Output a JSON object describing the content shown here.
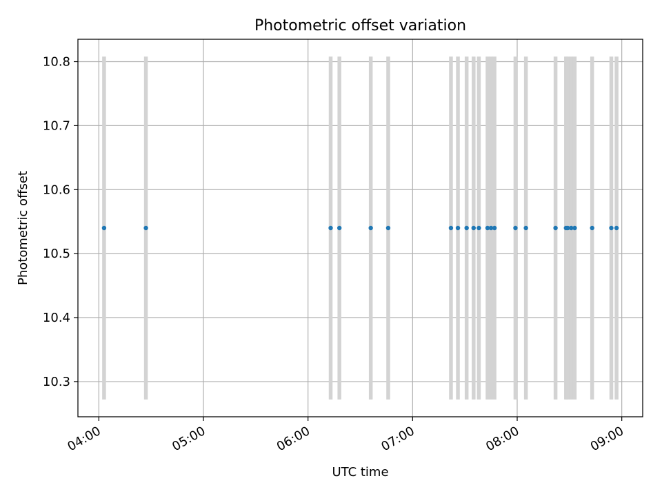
{
  "chart_data": {
    "type": "scatter",
    "title": "Photometric offset variation",
    "xlabel": "UTC time",
    "ylabel": "Photometric offset",
    "x_axis_format": "time",
    "x_range": [
      "03:48",
      "09:12"
    ],
    "y_range": [
      10.245,
      10.835
    ],
    "x_ticks": [
      "04:00",
      "05:00",
      "06:00",
      "07:00",
      "08:00",
      "09:00"
    ],
    "y_ticks": [
      "10.3",
      "10.4",
      "10.5",
      "10.6",
      "10.7",
      "10.8"
    ],
    "grid": true,
    "error_bar_range": [
      10.272,
      10.808
    ],
    "series": [
      {
        "x": [
          "04:03",
          "04:27",
          "06:13",
          "06:18",
          "06:36",
          "06:46",
          "07:22",
          "07:26",
          "07:31",
          "07:35",
          "07:38",
          "07:43",
          "07:45",
          "07:47",
          "07:59",
          "08:05",
          "08:22",
          "08:28",
          "08:29",
          "08:31",
          "08:33",
          "08:43",
          "08:54",
          "08:57"
        ],
        "y": [
          10.54,
          10.54,
          10.54,
          10.54,
          10.54,
          10.54,
          10.54,
          10.54,
          10.54,
          10.54,
          10.54,
          10.54,
          10.54,
          10.54,
          10.54,
          10.54,
          10.54,
          10.54,
          10.54,
          10.54,
          10.54,
          10.54,
          10.54,
          10.54
        ]
      }
    ],
    "colors": {
      "marker": "#1f77b4",
      "error_bar": "#d3d3d3",
      "grid": "#b0b0b0",
      "axes": "#000000"
    }
  }
}
